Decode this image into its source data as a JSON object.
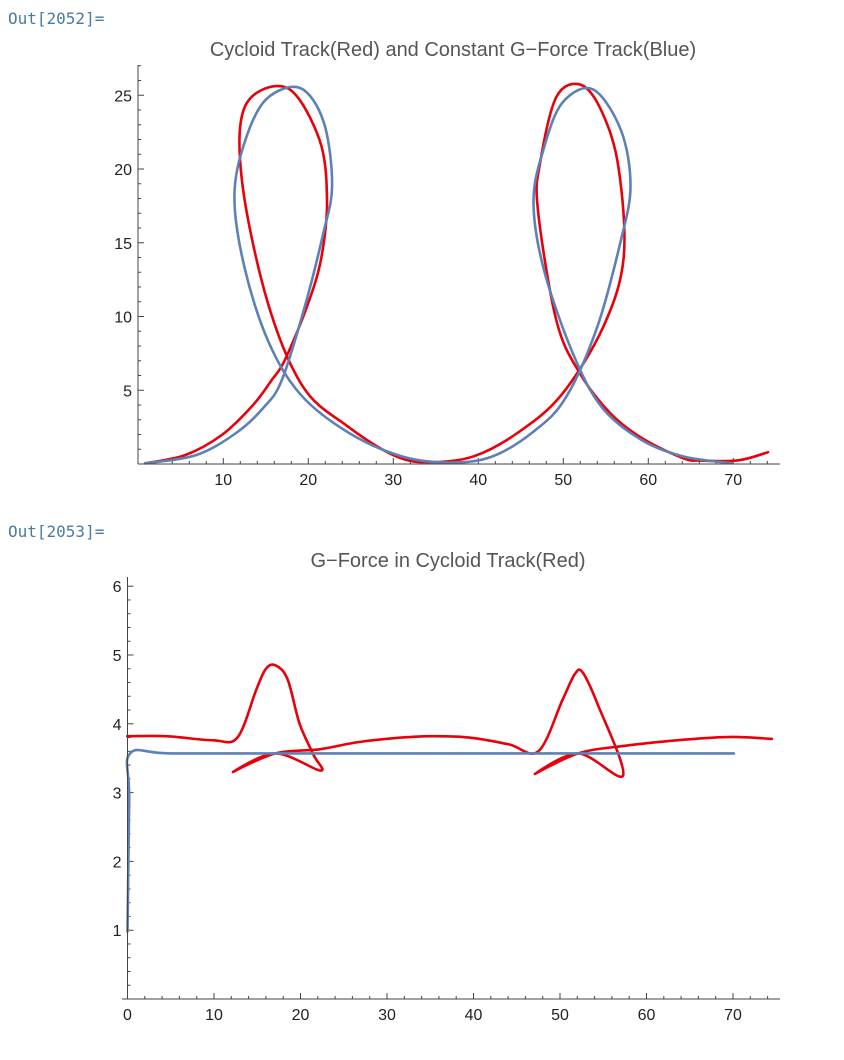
{
  "outputs": [
    {
      "label": "Out[2052]="
    },
    {
      "label": "Out[2053]="
    }
  ],
  "chart_data": [
    {
      "type": "line",
      "title": "Cycloid Track(Red) and Constant G−Force Track(Blue)",
      "xlim": [
        0,
        76
      ],
      "ylim": [
        0,
        27
      ],
      "x_ticks": [
        10,
        20,
        30,
        40,
        50,
        60,
        70
      ],
      "y_ticks": [
        5,
        10,
        15,
        20,
        25
      ],
      "series": [
        {
          "color": "#e8000b",
          "x": [
            0.8,
            5.5,
            9.9,
            13.5,
            15.7,
            17.2,
            19.8,
            21.5,
            22.2,
            21.3,
            17.5,
            12.6,
            12.2,
            15.2,
            19.3,
            24.5,
            30.4,
            34.6,
            39.5,
            44.6,
            49.8,
            54.7,
            57.1,
            56.5,
            54.6,
            52.1,
            49.2,
            47.3,
            47.0,
            49.2,
            52.0,
            55.6,
            59.4,
            64.1,
            66.2,
            70.6,
            74.1
          ],
          "y": [
            0.05,
            0.6,
            2.0,
            4.0,
            5.7,
            7.0,
            10.6,
            13.9,
            17.9,
            22.0,
            25.5,
            24.3,
            19.2,
            11.0,
            5.3,
            2.6,
            0.5,
            0.13,
            0.53,
            2.1,
            4.7,
            9.3,
            14.0,
            20.1,
            23.8,
            25.7,
            24.9,
            20.5,
            17.3,
            9.7,
            6.1,
            3.4,
            1.7,
            0.4,
            0.23,
            0.25,
            0.8
          ]
        },
        {
          "color": "#5e81b5",
          "x": [
            0.8,
            6.8,
            11.5,
            14.7,
            16.9,
            19.6,
            21.7,
            22.8,
            21.8,
            19.0,
            15.0,
            12.5,
            11.3,
            12.5,
            15.3,
            19.1,
            24.8,
            31.1,
            36.7,
            41.6,
            46.5,
            50.3,
            54.0,
            56.7,
            57.9,
            56.8,
            53.5,
            49.9,
            47.7,
            46.5,
            47.7,
            51.2,
            54.6,
            59.3,
            64.2,
            69.9
          ],
          "y": [
            0.05,
            0.6,
            2.1,
            3.8,
            5.7,
            10.7,
            15.5,
            18.9,
            23.2,
            25.5,
            24.7,
            21.8,
            18.1,
            13.3,
            8.3,
            4.7,
            2.1,
            0.5,
            0.1,
            0.5,
            2.2,
            4.5,
            9.3,
            15.0,
            18.8,
            22.6,
            25.4,
            24.5,
            21.4,
            17.8,
            13.2,
            7.4,
            3.8,
            1.6,
            0.5,
            0.05
          ]
        }
      ]
    },
    {
      "type": "line",
      "title": "G−Force in Cycloid Track(Red)",
      "xlim": [
        0,
        76
      ],
      "ylim": [
        0,
        6
      ],
      "x_ticks": [
        0,
        10,
        20,
        30,
        40,
        50,
        60,
        70
      ],
      "y_ticks": [
        1,
        2,
        3,
        4,
        5,
        6
      ],
      "series": [
        {
          "color": "#e8000b",
          "x": [
            0.25,
            0.3,
            4.5,
            9.9,
            12.7,
            14.9,
            16.0,
            17.1,
            18.5,
            19.9,
            21.5,
            22.3,
            17.1,
            12.2,
            17.1,
            22.2,
            26.5,
            30.8,
            35.0,
            39.5,
            44.1,
            47.5,
            50.3,
            51.7,
            52.6,
            54.3,
            57.3,
            52.1,
            47.1,
            52.1,
            57.5,
            64.5,
            69.9,
            74.5
          ],
          "y": [
            3.82,
            3.82,
            3.82,
            3.76,
            3.8,
            4.5,
            4.8,
            4.85,
            4.65,
            4.0,
            3.55,
            3.32,
            3.57,
            3.3,
            3.57,
            3.63,
            3.73,
            3.79,
            3.82,
            3.8,
            3.7,
            3.6,
            4.35,
            4.72,
            4.75,
            4.3,
            3.25,
            3.57,
            3.27,
            3.57,
            3.68,
            3.77,
            3.81,
            3.78
          ]
        },
        {
          "color": "#5e81b5",
          "x": [
            0.0,
            0.2,
            0.3,
            5.0,
            20.0,
            40.0,
            60.0,
            70.1
          ],
          "y": [
            0.98,
            2.9,
            3.57,
            3.57,
            3.57,
            3.57,
            3.57,
            3.57
          ]
        }
      ]
    }
  ]
}
